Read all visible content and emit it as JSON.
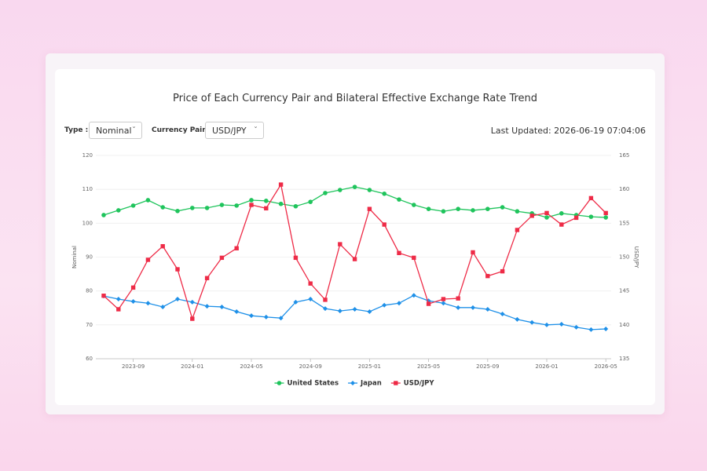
{
  "header": {
    "type_label": "Type :",
    "type_value": "Nominal",
    "pair_label": "Currency Pair :",
    "pair_value": "USD/JPY",
    "last_updated": "Last Updated: 2026-06-19 07:04:06"
  },
  "chart_data": {
    "type": "line",
    "title": "Price of Each Currency Pair and Bilateral Effective Exchange Rate Trend",
    "x": [
      "2023-07",
      "2023-08",
      "2023-09",
      "2023-10",
      "2023-11",
      "2023-12",
      "2024-01",
      "2024-02",
      "2024-03",
      "2024-04",
      "2024-05",
      "2024-06",
      "2024-07",
      "2024-08",
      "2024-09",
      "2024-10",
      "2024-11",
      "2024-12",
      "2025-01",
      "2025-02",
      "2025-03",
      "2025-04",
      "2025-05",
      "2025-06",
      "2025-07",
      "2025-08",
      "2025-09",
      "2025-10",
      "2025-11",
      "2025-12",
      "2026-01",
      "2026-02",
      "2026-03",
      "2026-04",
      "2026-05"
    ],
    "xticks": [
      "2023-09",
      "2024-01",
      "2024-05",
      "2024-09",
      "2025-01",
      "2025-05",
      "2025-09",
      "2026-01",
      "2026-05"
    ],
    "ylim": [
      60,
      120
    ],
    "yticks": [
      60,
      70,
      80,
      90,
      100,
      110,
      120
    ],
    "y2lim": [
      135,
      165
    ],
    "y2ticks": [
      135,
      140,
      145,
      150,
      155,
      160,
      165
    ],
    "y_label": "Nominal",
    "y2_label": "USD/JPY",
    "grid": true,
    "legend": "bottom",
    "series": [
      {
        "name": "United States",
        "color": "#1fc45c",
        "marker": "circle",
        "values": [
          102.4,
          103.8,
          105.2,
          106.8,
          104.7,
          103.6,
          104.5,
          104.5,
          105.4,
          105.2,
          106.8,
          106.6,
          105.7,
          105.0,
          106.3,
          108.9,
          109.8,
          110.7,
          109.8,
          108.7,
          107.0,
          105.4,
          104.2,
          103.5,
          104.2,
          103.8,
          104.2,
          104.7,
          103.5,
          102.9,
          101.7,
          102.9,
          102.4,
          101.9,
          101.7
        ]
      },
      {
        "name": "Japan",
        "color": "#1e90e8",
        "marker": "diamond",
        "values": [
          78.5,
          77.6,
          76.9,
          76.4,
          75.3,
          77.6,
          76.7,
          75.5,
          75.3,
          73.9,
          72.7,
          72.3,
          72.0,
          76.7,
          77.6,
          74.8,
          74.1,
          74.6,
          73.9,
          75.8,
          76.4,
          78.7,
          77.1,
          76.4,
          75.1,
          75.1,
          74.6,
          73.2,
          71.6,
          70.7,
          70.0,
          70.2,
          69.3,
          68.6,
          68.8
        ]
      },
      {
        "name": "USD/JPY",
        "color": "#ee2b47",
        "marker": "square",
        "axis": "y2",
        "values": [
          144.3,
          142.3,
          145.5,
          149.6,
          151.6,
          148.2,
          140.9,
          146.9,
          149.9,
          151.3,
          157.7,
          157.2,
          160.7,
          149.9,
          146.1,
          143.7,
          151.9,
          149.7,
          157.1,
          154.8,
          150.6,
          149.9,
          143.1,
          143.8,
          143.9,
          150.7,
          147.2,
          147.9,
          154.0,
          156.1,
          156.5,
          154.8,
          155.8,
          158.7,
          156.5
        ]
      }
    ]
  }
}
